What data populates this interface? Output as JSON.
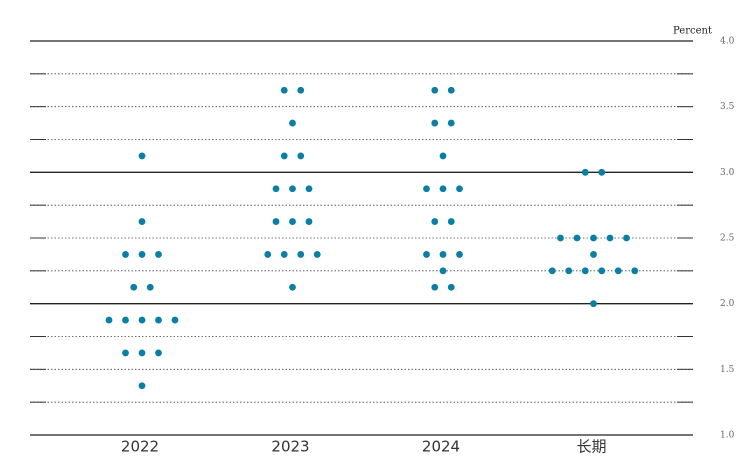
{
  "chart_data": {
    "type": "dot",
    "y_label": "Percent",
    "categories": [
      "2022",
      "2023",
      "2024",
      "长期"
    ],
    "values": [
      [
        3.125,
        2.625,
        2.375,
        2.375,
        2.375,
        2.125,
        2.125,
        1.875,
        1.875,
        1.875,
        1.875,
        1.875,
        1.625,
        1.625,
        1.625,
        1.375
      ],
      [
        3.625,
        3.625,
        3.375,
        3.125,
        3.125,
        2.875,
        2.875,
        2.875,
        2.625,
        2.625,
        2.625,
        2.375,
        2.375,
        2.375,
        2.375,
        2.125
      ],
      [
        3.625,
        3.625,
        3.375,
        3.375,
        3.125,
        2.875,
        2.875,
        2.875,
        2.625,
        2.625,
        2.375,
        2.375,
        2.375,
        2.25,
        2.125,
        2.125
      ],
      [
        3.0,
        3.0,
        2.5,
        2.5,
        2.5,
        2.5,
        2.5,
        2.375,
        2.25,
        2.25,
        2.25,
        2.25,
        2.25,
        2.25,
        2.0
      ]
    ],
    "color": "#0a7fa3",
    "ylim": [
      1.0,
      4.0
    ],
    "yticks": [
      {
        "value": 1.0,
        "label": "1.0"
      },
      {
        "value": 1.5,
        "label": "1.5"
      },
      {
        "value": 2.0,
        "label": "2.0"
      },
      {
        "value": 2.5,
        "label": "2.5"
      },
      {
        "value": 3.0,
        "label": "3.0"
      },
      {
        "value": 3.5,
        "label": "3.5"
      },
      {
        "value": 4.0,
        "label": "4.0"
      }
    ],
    "minor_yticks": [
      1.25,
      1.75,
      2.25,
      2.75,
      3.25,
      3.75
    ],
    "grid": true
  }
}
